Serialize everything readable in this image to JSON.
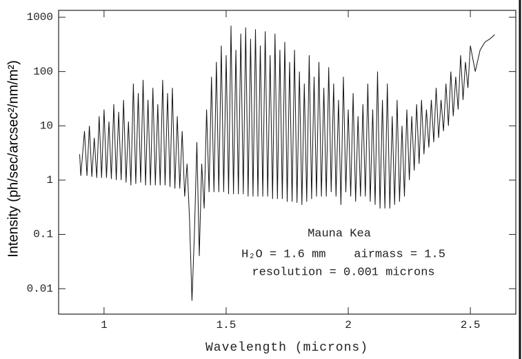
{
  "chart_data": {
    "type": "line",
    "x_label": "Wavelength (microns)",
    "y_label": "Intensity (ph/sec/arcsec²/nm/m²)",
    "annotations": [
      "Mauna Kea",
      "H₂O = 1.6 mm    airmass = 1.5",
      "resolution = 0.001 microns"
    ],
    "log_y": true,
    "color": "#111111",
    "xlim": [
      0.814,
      2.686
    ],
    "ylim": [
      0.0034,
      1340
    ],
    "xticks": [
      1,
      1.5,
      2,
      2.5
    ],
    "yticks": [
      0.01,
      0.1,
      1,
      10,
      100,
      1000
    ],
    "x": [
      0.9,
      0.905,
      0.92,
      0.93,
      0.94,
      0.95,
      0.96,
      0.97,
      0.98,
      0.99,
      1.0,
      1.01,
      1.02,
      1.03,
      1.04,
      1.05,
      1.06,
      1.07,
      1.08,
      1.09,
      1.1,
      1.11,
      1.12,
      1.13,
      1.14,
      1.15,
      1.16,
      1.17,
      1.18,
      1.19,
      1.2,
      1.21,
      1.22,
      1.23,
      1.24,
      1.25,
      1.26,
      1.27,
      1.28,
      1.29,
      1.3,
      1.31,
      1.32,
      1.33,
      1.34,
      1.35,
      1.36,
      1.37,
      1.38,
      1.39,
      1.4,
      1.41,
      1.42,
      1.43,
      1.44,
      1.45,
      1.46,
      1.47,
      1.48,
      1.49,
      1.5,
      1.51,
      1.52,
      1.53,
      1.54,
      1.55,
      1.56,
      1.57,
      1.58,
      1.59,
      1.6,
      1.61,
      1.62,
      1.63,
      1.64,
      1.65,
      1.66,
      1.67,
      1.68,
      1.69,
      1.7,
      1.71,
      1.72,
      1.73,
      1.74,
      1.75,
      1.76,
      1.77,
      1.78,
      1.79,
      1.8,
      1.81,
      1.82,
      1.83,
      1.84,
      1.85,
      1.86,
      1.87,
      1.88,
      1.89,
      1.9,
      1.91,
      1.92,
      1.93,
      1.94,
      1.95,
      1.96,
      1.97,
      1.98,
      1.99,
      2.0,
      2.01,
      2.02,
      2.03,
      2.04,
      2.05,
      2.06,
      2.07,
      2.08,
      2.09,
      2.1,
      2.11,
      2.12,
      2.13,
      2.14,
      2.15,
      2.16,
      2.17,
      2.18,
      2.19,
      2.2,
      2.21,
      2.22,
      2.23,
      2.24,
      2.25,
      2.26,
      2.27,
      2.28,
      2.29,
      2.3,
      2.31,
      2.32,
      2.33,
      2.34,
      2.35,
      2.36,
      2.37,
      2.38,
      2.39,
      2.4,
      2.41,
      2.42,
      2.43,
      2.44,
      2.45,
      2.46,
      2.47,
      2.48,
      2.49,
      2.5,
      2.52,
      2.54,
      2.56,
      2.58,
      2.6
    ],
    "values": [
      3,
      1.2,
      8,
      1.2,
      10,
      1.15,
      6,
      1.1,
      15,
      1.1,
      20,
      1.1,
      12,
      1.05,
      25,
      1.0,
      18,
      1.0,
      30,
      0.9,
      12,
      0.8,
      60,
      0.85,
      40,
      0.9,
      70,
      0.8,
      30,
      0.8,
      50,
      0.8,
      25,
      0.8,
      70,
      0.8,
      40,
      0.75,
      50,
      0.7,
      15,
      0.7,
      8,
      0.5,
      2,
      0.2,
      0.006,
      0.1,
      5,
      0.04,
      2,
      0.3,
      20,
      0.6,
      80,
      0.6,
      150,
      0.6,
      300,
      0.6,
      200,
      0.55,
      700,
      0.55,
      250,
      0.55,
      500,
      0.55,
      650,
      0.5,
      400,
      0.5,
      600,
      0.5,
      300,
      0.5,
      550,
      0.5,
      200,
      0.45,
      500,
      0.45,
      250,
      0.45,
      350,
      0.4,
      150,
      0.4,
      250,
      0.38,
      100,
      0.35,
      60,
      0.4,
      200,
      0.45,
      80,
      0.5,
      150,
      0.5,
      50,
      0.5,
      120,
      0.6,
      60,
      0.5,
      30,
      0.35,
      80,
      0.6,
      20,
      0.5,
      40,
      0.4,
      15,
      0.5,
      25,
      0.5,
      60,
      0.4,
      20,
      0.35,
      100,
      0.3,
      30,
      0.3,
      60,
      0.3,
      15,
      0.35,
      30,
      0.4,
      10,
      0.5,
      20,
      1,
      15,
      1.5,
      25,
      2,
      30,
      3,
      20,
      4,
      30,
      5,
      50,
      6,
      30,
      8,
      60,
      10,
      100,
      15,
      80,
      20,
      200,
      30,
      150,
      50,
      300,
      100,
      250,
      350,
      400,
      480
    ]
  }
}
